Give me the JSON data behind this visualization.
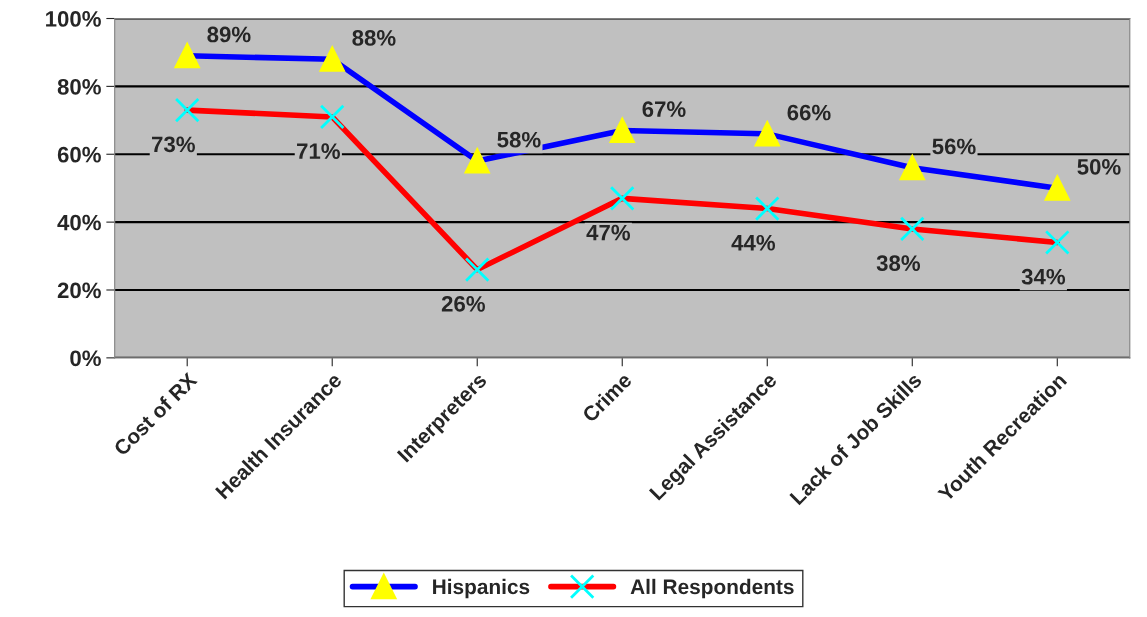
{
  "chart_data": {
    "type": "line",
    "categories": [
      "Cost of RX",
      "Health Insurance",
      "Interpreters",
      "Crime",
      "Legal Assistance",
      "Lack of Job Skills",
      "Youth Recreation"
    ],
    "series": [
      {
        "name": "Hispanics",
        "color": "#0000ff",
        "marker": "triangle",
        "values": [
          89,
          88,
          58,
          67,
          66,
          56,
          50
        ],
        "value_labels": [
          "89%",
          "88%",
          "58%",
          "67%",
          "66%",
          "56%",
          "50%"
        ]
      },
      {
        "name": "All Respondents",
        "color": "#ff0000",
        "marker": "cross",
        "values": [
          73,
          71,
          26,
          47,
          44,
          38,
          34
        ],
        "value_labels": [
          "73%",
          "71%",
          "26%",
          "47%",
          "44%",
          "38%",
          "34%"
        ]
      }
    ],
    "ylim": [
      0,
      100
    ],
    "yticks": [
      {
        "value": 0,
        "label": "0%"
      },
      {
        "value": 20,
        "label": "20%"
      },
      {
        "value": 40,
        "label": "40%"
      },
      {
        "value": 60,
        "label": "60%"
      },
      {
        "value": 80,
        "label": "80%"
      },
      {
        "value": 100,
        "label": "100%"
      }
    ],
    "grid": "y",
    "legend": "bottom",
    "line_style": "solid"
  }
}
